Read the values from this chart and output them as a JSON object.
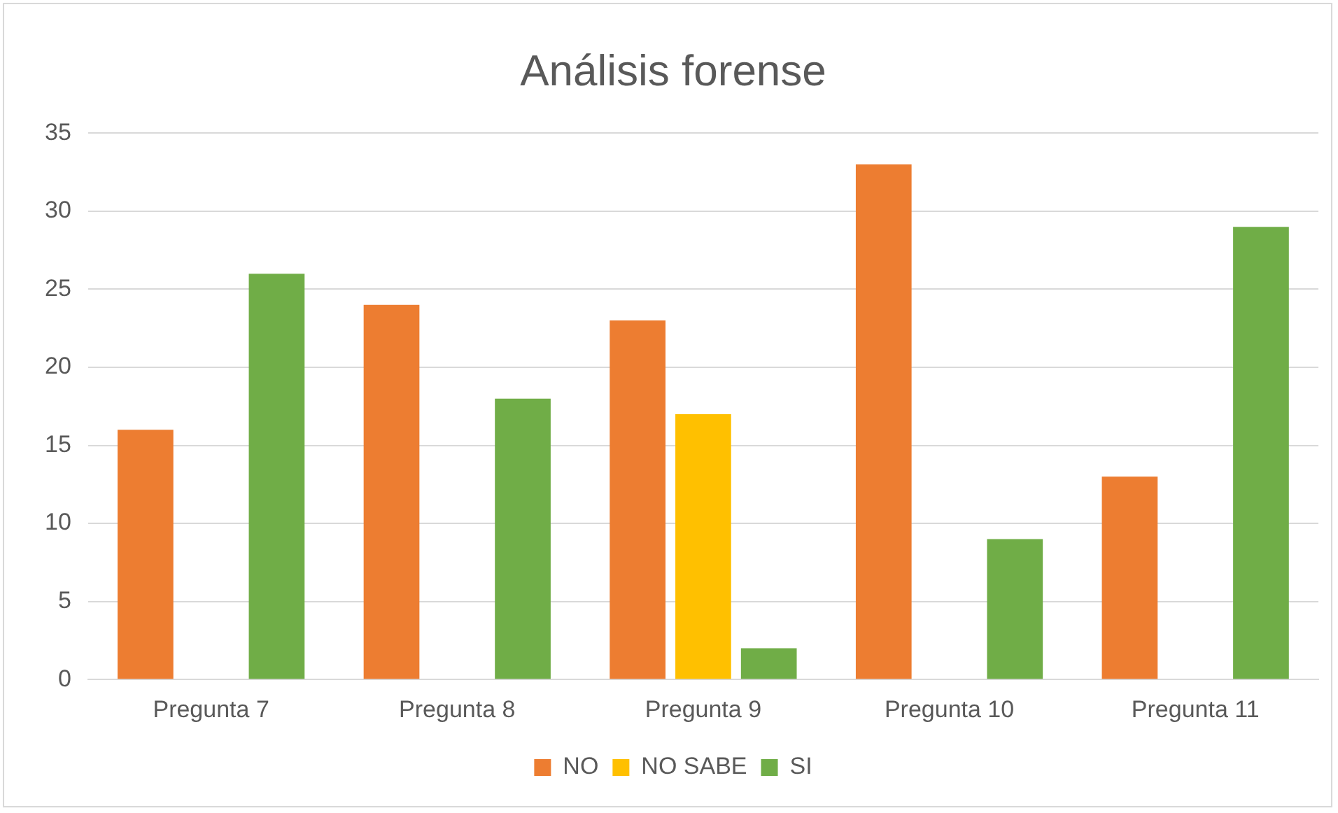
{
  "chart_data": {
    "type": "bar",
    "title": "Análisis forense",
    "categories": [
      "Pregunta 7",
      "Pregunta 8",
      "Pregunta 9",
      "Pregunta 10",
      "Pregunta 11"
    ],
    "series": [
      {
        "name": "NO",
        "color": "#ed7d31",
        "values": [
          16,
          24,
          23,
          33,
          13
        ]
      },
      {
        "name": "NO SABE",
        "color": "#ffc000",
        "values": [
          null,
          null,
          17,
          null,
          null
        ]
      },
      {
        "name": "SI",
        "color": "#70ad47",
        "values": [
          26,
          18,
          2,
          9,
          29
        ]
      }
    ],
    "ylim": [
      0,
      35
    ],
    "yticks": [
      0,
      5,
      10,
      15,
      20,
      25,
      30,
      35
    ],
    "grid": "y",
    "legend": "bottom"
  }
}
